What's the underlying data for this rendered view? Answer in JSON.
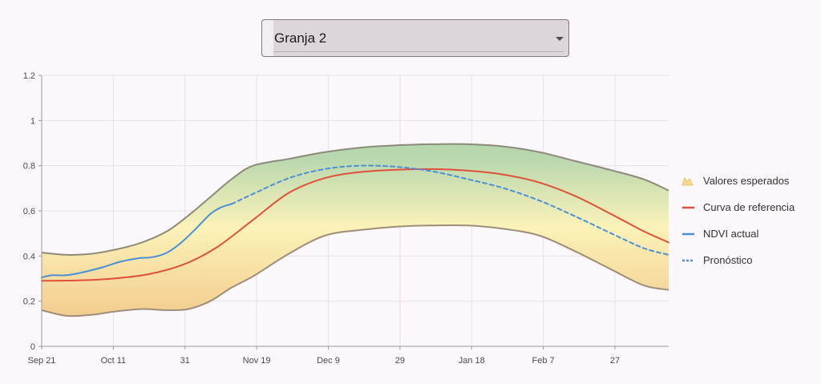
{
  "selector": {
    "value": "Granja 2"
  },
  "chart_data": {
    "type": "line",
    "x_unit": "date",
    "x_ticks": [
      "Sep 21",
      "Oct 11",
      "31",
      "Nov 19",
      "Dec 9",
      "29",
      "Jan 18",
      "Feb 7",
      "27"
    ],
    "y_ticks": [
      "0",
      "0.2",
      "0.4",
      "0.6",
      "0.8",
      "1",
      "1.2"
    ],
    "ylim": [
      0,
      1.2
    ],
    "xlim": [
      "2023-09-21",
      "2024-03-14"
    ],
    "grid": true,
    "legend_position": "right",
    "expected_band": {
      "name": "Valores esperados",
      "x": [
        "2023-09-21",
        "2023-09-28",
        "2023-10-05",
        "2023-10-12",
        "2023-10-19",
        "2023-10-26",
        "2023-11-01",
        "2023-11-07",
        "2023-11-13",
        "2023-11-19",
        "2023-11-29",
        "2023-12-09",
        "2023-12-19",
        "2023-12-29",
        "2024-01-08",
        "2024-01-18",
        "2024-01-28",
        "2024-02-07",
        "2024-02-17",
        "2024-02-27",
        "2024-03-07",
        "2024-03-14"
      ],
      "upper": [
        0.415,
        0.405,
        0.41,
        0.43,
        0.46,
        0.51,
        0.58,
        0.66,
        0.74,
        0.8,
        0.83,
        0.86,
        0.88,
        0.89,
        0.895,
        0.895,
        0.885,
        0.86,
        0.82,
        0.78,
        0.74,
        0.69
      ],
      "lower": [
        0.16,
        0.135,
        0.14,
        0.155,
        0.165,
        0.16,
        0.165,
        0.2,
        0.26,
        0.31,
        0.41,
        0.49,
        0.515,
        0.53,
        0.535,
        0.535,
        0.52,
        0.49,
        0.42,
        0.34,
        0.27,
        0.25
      ]
    },
    "series": [
      {
        "name": "Curva de referencia",
        "color": "#e0503a",
        "style": "solid",
        "x": [
          "2023-09-21",
          "2023-10-01",
          "2023-10-11",
          "2023-10-21",
          "2023-10-31",
          "2023-11-09",
          "2023-11-19",
          "2023-11-29",
          "2023-12-09",
          "2023-12-19",
          "2023-12-29",
          "2024-01-08",
          "2024-01-18",
          "2024-01-28",
          "2024-02-07",
          "2024-02-17",
          "2024-02-27",
          "2024-03-07",
          "2024-03-14"
        ],
        "y": [
          0.29,
          0.292,
          0.3,
          0.32,
          0.365,
          0.44,
          0.56,
          0.68,
          0.745,
          0.772,
          0.782,
          0.785,
          0.778,
          0.76,
          0.725,
          0.665,
          0.585,
          0.51,
          0.46
        ]
      },
      {
        "name": "NDVI actual",
        "color": "#4a90d9",
        "style": "solid",
        "x": [
          "2023-09-21",
          "2023-09-24",
          "2023-09-28",
          "2023-10-03",
          "2023-10-08",
          "2023-10-13",
          "2023-10-18",
          "2023-10-22",
          "2023-10-26",
          "2023-10-30",
          "2023-11-03",
          "2023-11-07",
          "2023-11-10",
          "2023-11-13"
        ],
        "y": [
          0.305,
          0.315,
          0.315,
          0.33,
          0.35,
          0.375,
          0.39,
          0.395,
          0.415,
          0.46,
          0.52,
          0.585,
          0.615,
          0.63
        ]
      },
      {
        "name": "Pronóstico",
        "color": "#4a90d9",
        "style": "dashed",
        "x": [
          "2023-11-13",
          "2023-11-19",
          "2023-11-29",
          "2023-12-09",
          "2023-12-19",
          "2023-12-29",
          "2024-01-08",
          "2024-01-18",
          "2024-01-28",
          "2024-02-07",
          "2024-02-17",
          "2024-02-27",
          "2024-03-07",
          "2024-03-14"
        ],
        "y": [
          0.63,
          0.675,
          0.745,
          0.785,
          0.8,
          0.795,
          0.775,
          0.74,
          0.7,
          0.645,
          0.575,
          0.5,
          0.435,
          0.405
        ]
      }
    ],
    "legend": [
      "Valores esperados",
      "Curva de referencia",
      "NDVI actual",
      "Pronóstico"
    ]
  }
}
